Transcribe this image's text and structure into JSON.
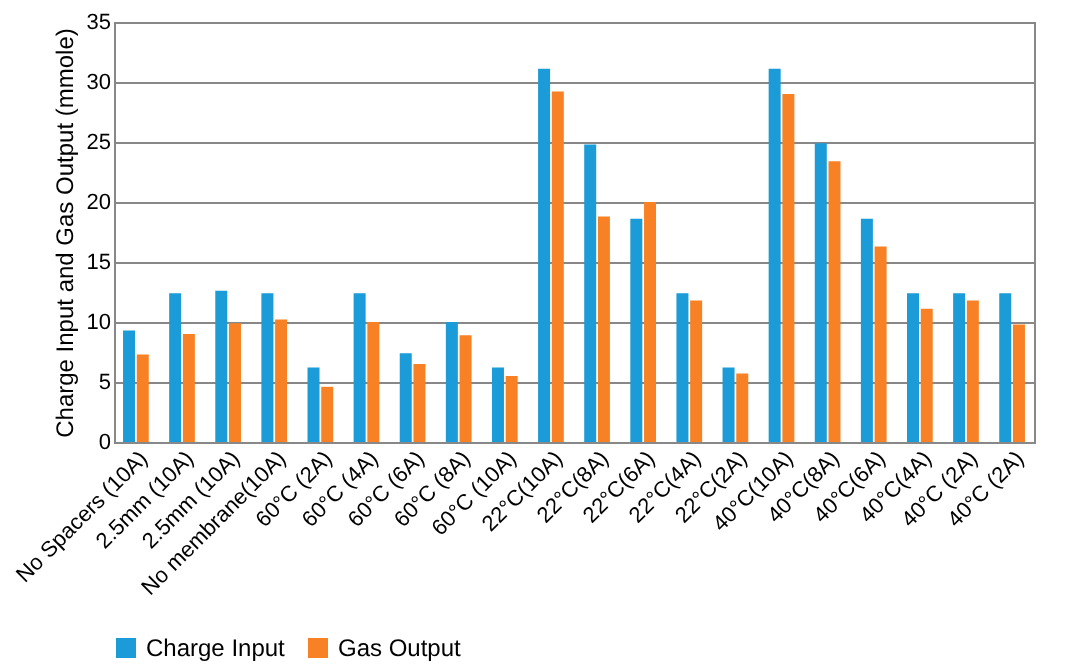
{
  "chart_data": {
    "type": "bar",
    "ylabel": "Charge Input and Gas Output (mmole)",
    "categories": [
      "No Spacers (10A)",
      "2.5mm (10A)",
      "2.5mm (10A)",
      "No membrane(10A)",
      "60°C (2A)",
      "60°C (4A)",
      "60°C (6A)",
      "60°C (8A)",
      "60°C (10A)",
      "22°C(10A)",
      "22°C(8A)",
      "22°C(6A)",
      "22°C(4A)",
      "22°C(2A)",
      "40°C(10A)",
      "40°C(8A)",
      "40°C(6A)",
      "40°C(4A)",
      "40°C (2A)",
      "40°C (2A)"
    ],
    "series": [
      {
        "name": "Charge Input",
        "color": "#1b9bd7",
        "values": [
          9.3,
          12.4,
          12.6,
          12.4,
          6.2,
          12.4,
          7.4,
          10.0,
          6.2,
          31.1,
          24.8,
          18.6,
          12.4,
          6.2,
          31.1,
          24.9,
          18.6,
          12.4,
          12.4,
          12.4
        ]
      },
      {
        "name": "Gas Output",
        "color": "#f98125",
        "values": [
          7.3,
          9.0,
          9.9,
          10.2,
          4.6,
          10.0,
          6.5,
          8.9,
          5.5,
          29.2,
          18.8,
          20.0,
          11.8,
          5.7,
          29.0,
          23.4,
          16.3,
          11.1,
          11.8,
          9.8
        ]
      }
    ],
    "ylim": [
      0,
      35
    ],
    "yticks": [
      0,
      5,
      10,
      15,
      20,
      25,
      30,
      35
    ],
    "grid": "y",
    "legend": "bottom"
  }
}
